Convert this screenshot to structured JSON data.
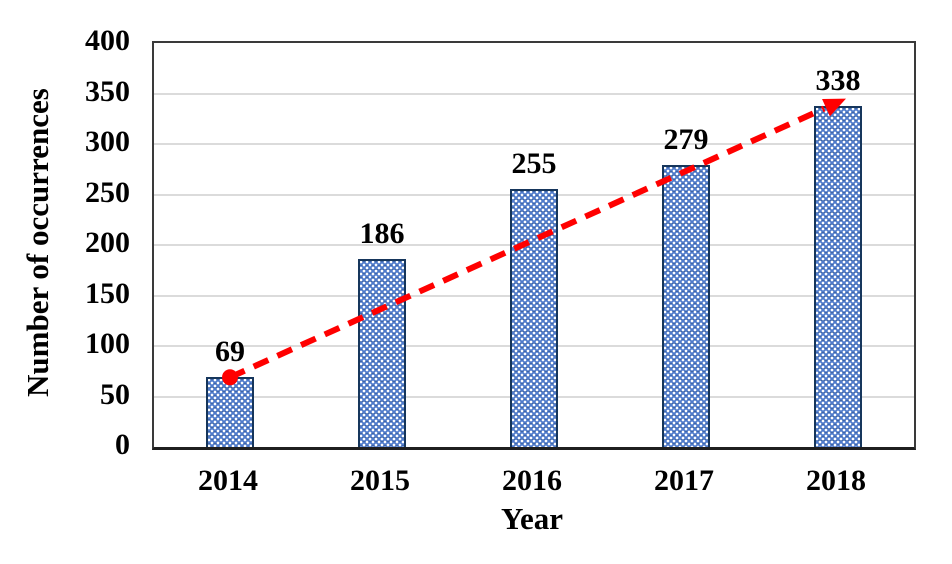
{
  "chart_data": {
    "type": "bar",
    "title": "",
    "xlabel": "Year",
    "ylabel": "Number of occurrences",
    "categories": [
      "2014",
      "2015",
      "2016",
      "2017",
      "2018"
    ],
    "values": [
      69,
      186,
      255,
      279,
      338
    ],
    "data_labels": [
      "69",
      "186",
      "255",
      "279",
      "338"
    ],
    "ylim": [
      0,
      400
    ],
    "yticks": [
      0,
      50,
      100,
      150,
      200,
      250,
      300,
      350,
      400
    ],
    "grid": true,
    "legend": false,
    "annotations": {
      "trend_arrow": {
        "description": "red dashed straight arrow from 2014 bar top to 2018 bar top",
        "from": {
          "category": "2014",
          "value": 69
        },
        "to": {
          "category": "2018",
          "value": 338
        },
        "style": "dashed",
        "start_marker": "circle",
        "end_marker": "arrowhead"
      }
    }
  },
  "colors": {
    "bar_fill": "#4F7BCB",
    "bar_pattern_dot": "#FFFFFF",
    "bar_border": "#16365C",
    "gridline": "#DBDBDB",
    "axis_border": "#3A3A3A",
    "axis_bottom": "#1F1F1F",
    "trend": "#FF0000",
    "text": "#000000",
    "background": "#FFFFFF"
  }
}
